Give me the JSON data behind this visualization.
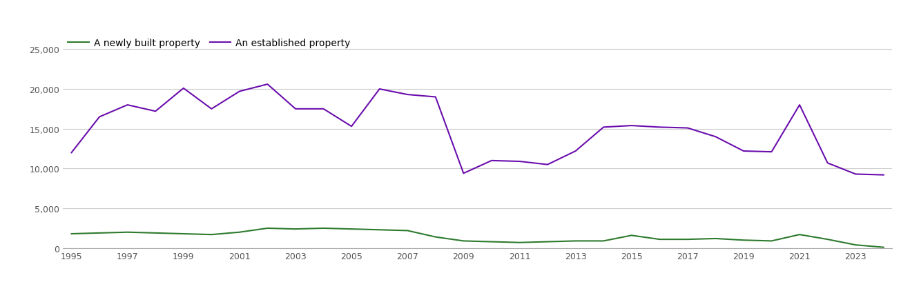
{
  "years": [
    1995,
    1996,
    1997,
    1998,
    1999,
    2000,
    2001,
    2002,
    2003,
    2004,
    2005,
    2006,
    2007,
    2008,
    2009,
    2010,
    2011,
    2012,
    2013,
    2014,
    2015,
    2016,
    2017,
    2018,
    2019,
    2020,
    2021,
    2022,
    2023,
    2024
  ],
  "new_build": [
    1800,
    1900,
    2000,
    1900,
    1800,
    1700,
    2000,
    2500,
    2400,
    2500,
    2400,
    2300,
    2200,
    1400,
    900,
    800,
    700,
    800,
    900,
    900,
    1600,
    1100,
    1100,
    1200,
    1000,
    900,
    1700,
    1100,
    400,
    100
  ],
  "established": [
    12000,
    16500,
    18000,
    17200,
    20100,
    17500,
    19700,
    20600,
    17500,
    17500,
    15300,
    20000,
    19300,
    19000,
    9400,
    11000,
    10900,
    10500,
    12200,
    15200,
    15400,
    15200,
    15100,
    14000,
    12200,
    12100,
    18000,
    10700,
    9300,
    9200
  ],
  "new_build_color": "#2d7a2d",
  "established_color": "#6a0dad",
  "legend_new_build": "A newly built property",
  "legend_established": "An established property",
  "ylim": [
    0,
    27000
  ],
  "yticks": [
    0,
    5000,
    10000,
    15000,
    20000,
    25000
  ],
  "xtick_step": 2,
  "background_color": "#ffffff",
  "grid_color": "#cccccc",
  "line_width": 1.5,
  "figsize": [
    13.05,
    4.1
  ],
  "dpi": 100,
  "tick_fontsize": 9,
  "legend_fontsize": 10
}
